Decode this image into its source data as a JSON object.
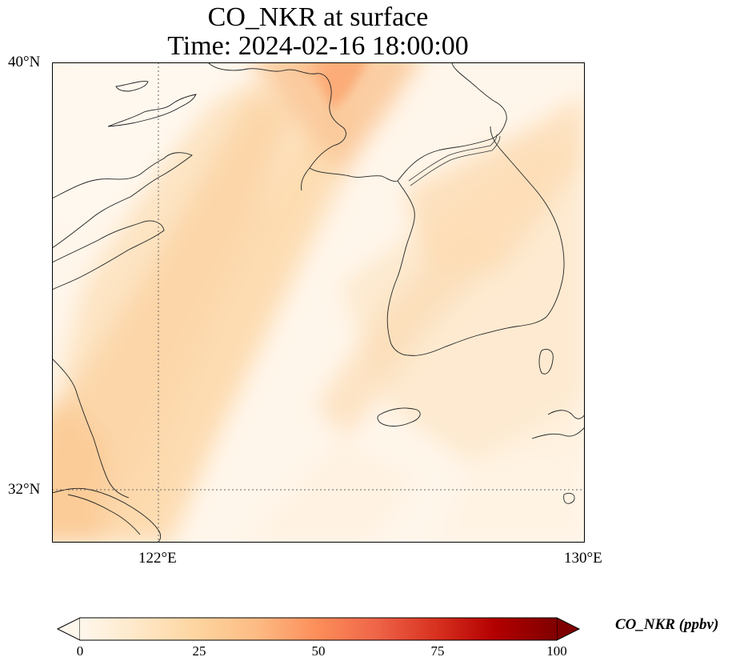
{
  "title": {
    "line1": "CO_NKR at surface",
    "line2": "Time: 2024-02-16 18:00:00"
  },
  "map": {
    "lon_range": [
      120,
      130
    ],
    "lat_range": [
      31,
      40
    ],
    "gridlines": "dotted at 122°E and 32°N",
    "lat_ticks": [
      "40°N",
      "32°N"
    ],
    "lon_ticks": [
      "122°E",
      "130°E"
    ],
    "field": "CO_NKR",
    "field_description_colormap": "OrRd-like"
  },
  "colorbar": {
    "label": "CO_NKR (ppbv)",
    "ticks": [
      "0",
      "25",
      "50",
      "75",
      "100"
    ],
    "range": [
      0,
      100
    ],
    "extend": "both",
    "colors": [
      "#fff7ec",
      "#fee8c8",
      "#fdd49e",
      "#fdbb84",
      "#fc8d59",
      "#ef6548",
      "#d7301f",
      "#b30000",
      "#7f0000"
    ]
  }
}
